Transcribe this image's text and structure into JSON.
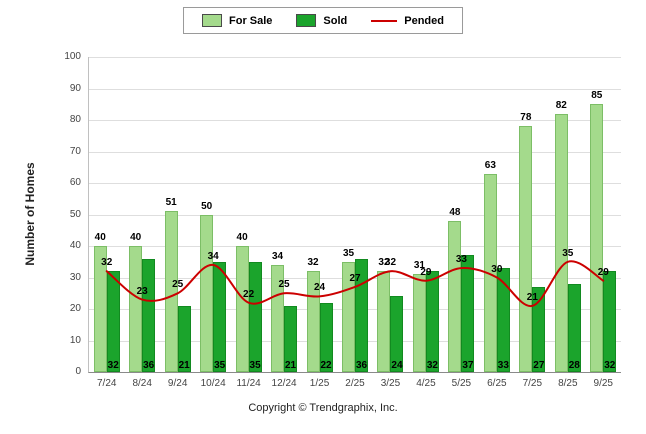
{
  "chart_data": {
    "type": "bar",
    "categories": [
      "7/24",
      "8/24",
      "9/24",
      "10/24",
      "11/24",
      "12/24",
      "1/25",
      "2/25",
      "3/25",
      "4/25",
      "5/25",
      "6/25",
      "7/25",
      "8/25",
      "9/25"
    ],
    "series": [
      {
        "name": "For Sale",
        "type": "bar",
        "color": "#A4DA8C",
        "border": "#7CBE66",
        "values": [
          40,
          40,
          51,
          50,
          40,
          34,
          32,
          35,
          32,
          31,
          48,
          63,
          78,
          82,
          85
        ]
      },
      {
        "name": "Sold",
        "type": "bar",
        "color": "#1BA42C",
        "border": "#128A20",
        "values": [
          32,
          36,
          21,
          35,
          35,
          21,
          22,
          36,
          24,
          32,
          37,
          33,
          27,
          28,
          32
        ]
      },
      {
        "name": "Pended",
        "type": "line",
        "color": "#CC0000",
        "values": [
          32,
          23,
          25,
          34,
          22,
          25,
          24,
          27,
          32,
          29,
          33,
          30,
          21,
          35,
          29
        ]
      }
    ],
    "title": "",
    "xlabel": "",
    "ylabel": "Number of Homes",
    "ylim": [
      0,
      100
    ],
    "ytick_step": 10,
    "legend_position": "top",
    "grid": "horizontal"
  },
  "footer": {
    "copyright": "Copyright © Trendgraphix, Inc."
  }
}
